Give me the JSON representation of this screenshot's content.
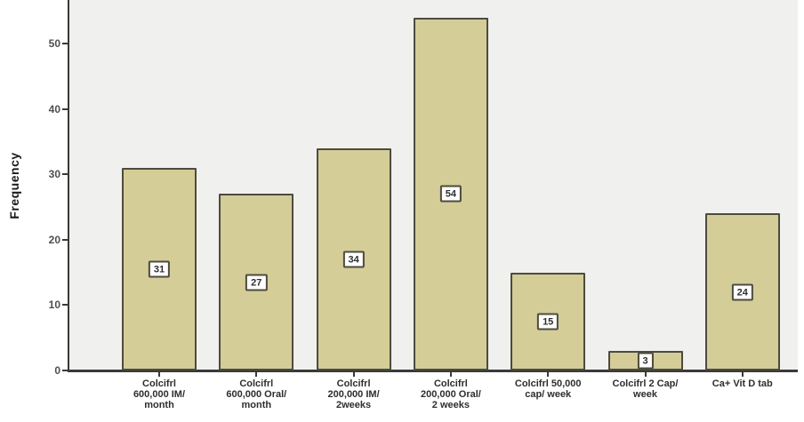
{
  "chart_data": {
    "type": "bar",
    "title": "",
    "xlabel": "",
    "ylabel": "Frequency",
    "categories": [
      "Colcifrl 600,000 IM/ month",
      "Colcifrl 600,000 Oral/ month",
      "Colcifrl 200,000 IM/ 2weeks",
      "Colcifrl 200,000 Oral/ 2 weeks",
      "Colcifrl 50,000 cap/ week",
      "Colcifrl 2 Cap/ week",
      "Ca+ Vit D tab"
    ],
    "category_label_lines": [
      [
        "Colcifrl",
        "600,000 IM/",
        "month"
      ],
      [
        "Colcifrl",
        "600,000 Oral/",
        "month"
      ],
      [
        "Colcifrl",
        "200,000 IM/",
        "2weeks"
      ],
      [
        "Colcifrl",
        "200,000 Oral/",
        "2 weeks"
      ],
      [
        "Colcifrl 50,000",
        "cap/ week"
      ],
      [
        "Colcifrl 2 Cap/",
        "week"
      ],
      [
        "Ca+ Vit D tab"
      ]
    ],
    "values": [
      31,
      27,
      34,
      54,
      15,
      3,
      24
    ],
    "bar_value_labels": [
      "31",
      "27",
      "34",
      "54",
      "15",
      "3",
      "24"
    ],
    "yticks": [
      0,
      10,
      20,
      30,
      40,
      50
    ],
    "ylim": [
      0,
      56.7
    ],
    "grid": false,
    "legend": "none",
    "colors": {
      "bar_fill": "#d5cd97",
      "bar_border": "#4c4b3f",
      "plot_background": "#f0f0ee",
      "page_background": "#ffffff",
      "axis_line": "#3a3a3a",
      "tick_label": "#4f4f4f",
      "value_box_background": "#ffffff",
      "value_box_border": "#4c4b3f"
    }
  }
}
